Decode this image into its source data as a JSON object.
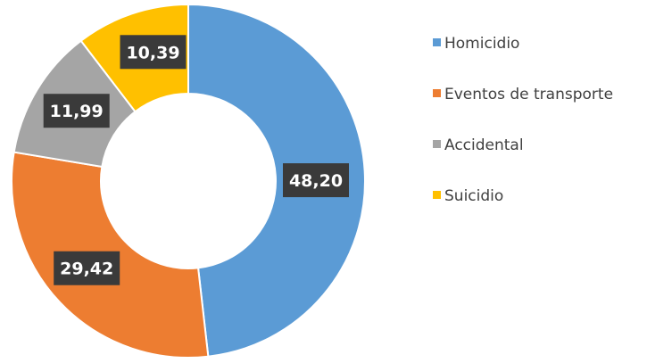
{
  "chart_data": {
    "type": "pie",
    "variant": "donut",
    "categories": [
      "Homicidio",
      "Eventos de transporte",
      "Accidental",
      "Suicidio"
    ],
    "values": [
      48.2,
      29.42,
      11.99,
      10.39
    ],
    "value_labels": [
      "48,20",
      "29,42",
      "11,99",
      "10,39"
    ],
    "colors": [
      "#5B9BD5",
      "#ED7D31",
      "#A5A5A5",
      "#FFC000"
    ],
    "label_box_color": "#3A3A3A",
    "legend_position": "right",
    "start_angle": "12 o'clock",
    "direction": "clockwise"
  }
}
